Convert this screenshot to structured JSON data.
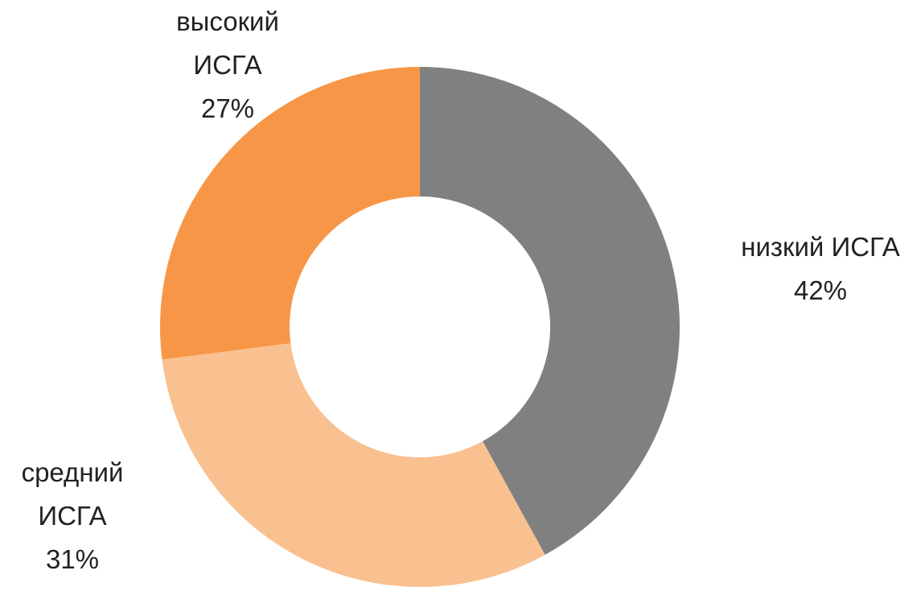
{
  "chart_data": {
    "type": "donut",
    "categories": [
      "низкий ИСГА",
      "средний ИСГА",
      "высокий ИСГА"
    ],
    "values": [
      42,
      31,
      27
    ],
    "value_labels": [
      "42%",
      "31%",
      "27%"
    ],
    "colors": [
      "#808080",
      "#f9c090",
      "#f79646"
    ]
  }
}
